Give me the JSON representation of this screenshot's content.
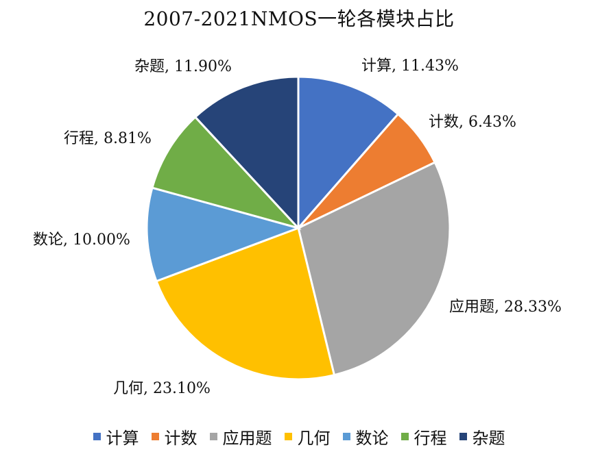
{
  "chart_data": {
    "type": "pie",
    "title": "2007-2021NMOS一轮各模块占比",
    "legend_position": "bottom",
    "slices": [
      {
        "name": "计算",
        "value": 11.43,
        "label": "11.43%",
        "color": "#4472C4"
      },
      {
        "name": "计数",
        "value": 6.43,
        "label": "6.43%",
        "color": "#ED7D31"
      },
      {
        "name": "应用题",
        "value": 28.33,
        "label": "28.33%",
        "color": "#A5A5A5"
      },
      {
        "name": "几何",
        "value": 23.1,
        "label": "23.10%",
        "color": "#FFC000"
      },
      {
        "name": "数论",
        "value": 10.0,
        "label": "10.00%",
        "color": "#5B9BD5"
      },
      {
        "name": "行程",
        "value": 8.81,
        "label": "8.81%",
        "color": "#70AD47"
      },
      {
        "name": "杂题",
        "value": 11.9,
        "label": "11.90%",
        "color": "#264478"
      }
    ]
  }
}
